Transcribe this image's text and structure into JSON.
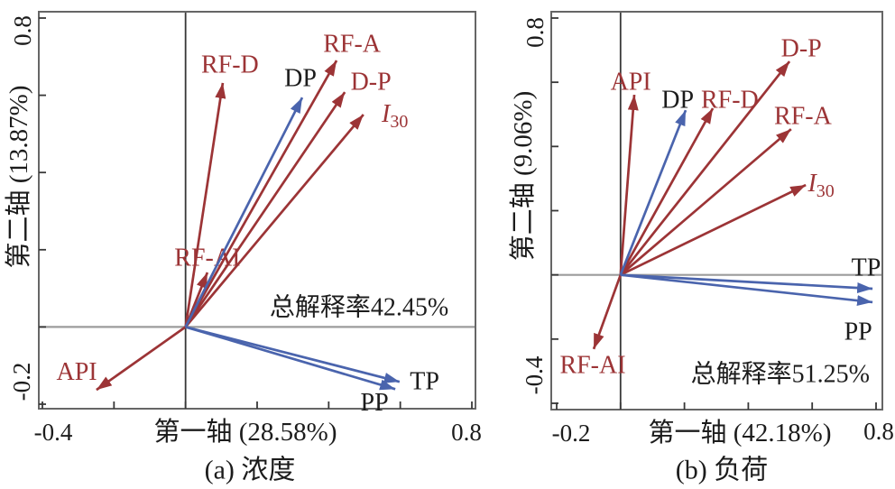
{
  "figure": {
    "background": "#ffffff"
  },
  "colors": {
    "env_arrow": "#9c3436",
    "resp_arrow": "#4a64ad",
    "env_label": "#9c3436",
    "resp_label": "#1c1c1c",
    "box": "#666666",
    "zero_line_h": "#9c9c9c",
    "zero_line_v": "#383838",
    "tick": "#383838",
    "text": "#1c1c1c"
  },
  "chart_data": [
    {
      "type": "biplot",
      "panel": "a",
      "caption": "(a) 浓度",
      "xlabel": "第一轴 (28.58%)",
      "ylabel": "第二轴 (13.87%)",
      "total_explained_label": "总解释率42.45%",
      "total_explained_pos": {
        "x": 0.485,
        "y": 0.05
      },
      "xlim": [
        -0.4,
        0.8
      ],
      "ylim": [
        -0.2,
        0.8
      ],
      "xticks": [
        -0.4,
        -0.2,
        0,
        0.2,
        0.4,
        0.6,
        0.8
      ],
      "yticks": [
        0.8,
        0.6,
        0.4,
        0.2,
        0,
        -0.2
      ],
      "xtick_labels": [
        "-0.4",
        "0.8"
      ],
      "ytick_labels": [
        "0.8",
        "-0.2"
      ],
      "grid": false,
      "vectors": [
        {
          "name": "RF-D",
          "group": "env",
          "x": 0.104,
          "y": 0.632,
          "label": {
            "text": "RF-D",
            "x": 0.124,
            "y": 0.679
          }
        },
        {
          "name": "RF-A",
          "group": "env",
          "x": 0.422,
          "y": 0.69,
          "label": {
            "text": "RF-A",
            "x": 0.465,
            "y": 0.732
          }
        },
        {
          "name": "D-P",
          "group": "env",
          "x": 0.445,
          "y": 0.608,
          "label": {
            "text": "D-P",
            "x": 0.518,
            "y": 0.634
          }
        },
        {
          "name": "I30",
          "group": "env",
          "x": 0.497,
          "y": 0.55,
          "label": {
            "text": "I30",
            "x": 0.585,
            "y": 0.552,
            "rich": {
              "base": "I",
              "sub": "30"
            }
          }
        },
        {
          "name": "RF-AI",
          "group": "env",
          "x": 0.061,
          "y": 0.141,
          "label": {
            "text": "RF-AI",
            "x": 0.061,
            "y": 0.179
          }
        },
        {
          "name": "API",
          "group": "env",
          "x": -0.249,
          "y": -0.163,
          "label": {
            "text": "API",
            "x": -0.304,
            "y": -0.117
          }
        },
        {
          "name": "DP",
          "group": "resp",
          "x": 0.326,
          "y": 0.594,
          "label": {
            "text": "DP",
            "x": 0.321,
            "y": 0.643
          }
        },
        {
          "name": "TP",
          "group": "resp",
          "x": 0.598,
          "y": -0.142,
          "label": {
            "text": "TP",
            "x": 0.668,
            "y": -0.142
          }
        },
        {
          "name": "PP",
          "group": "resp",
          "x": 0.586,
          "y": -0.161,
          "label": {
            "text": "PP",
            "x": 0.528,
            "y": -0.196
          }
        }
      ]
    },
    {
      "type": "biplot",
      "panel": "b",
      "caption": "(b) 负荷",
      "xlabel": "第一轴 (42.18%)",
      "ylabel": "第二轴 (9.06%)",
      "total_explained_label": "总解释率51.25%",
      "total_explained_pos": {
        "x": 0.5,
        "y": -0.31
      },
      "xlim": [
        -0.2,
        0.8
      ],
      "ylim": [
        -0.4,
        0.8
      ],
      "xticks": [
        -0.2,
        0,
        0.2,
        0.4,
        0.6,
        0.8
      ],
      "yticks": [
        0.8,
        0.6,
        0.4,
        0.2,
        0,
        -0.2,
        -0.4
      ],
      "xtick_labels": [
        "-0.2",
        "0.8"
      ],
      "ytick_labels": [
        "0.8",
        "-0.4"
      ],
      "grid": false,
      "vectors": [
        {
          "name": "API",
          "group": "env",
          "x": 0.043,
          "y": 0.561,
          "label": {
            "text": "API",
            "x": 0.032,
            "y": 0.601
          }
        },
        {
          "name": "RF-D",
          "group": "env",
          "x": 0.289,
          "y": 0.519,
          "label": {
            "text": "RF-D",
            "x": 0.342,
            "y": 0.544
          }
        },
        {
          "name": "D-P",
          "group": "env",
          "x": 0.529,
          "y": 0.665,
          "label": {
            "text": "D-P",
            "x": 0.566,
            "y": 0.705
          }
        },
        {
          "name": "RF-A",
          "group": "env",
          "x": 0.534,
          "y": 0.454,
          "label": {
            "text": "RF-A",
            "x": 0.571,
            "y": 0.494
          }
        },
        {
          "name": "I30",
          "group": "env",
          "x": 0.58,
          "y": 0.28,
          "label": {
            "text": "I30",
            "x": 0.628,
            "y": 0.286,
            "rich": {
              "base": "I",
              "sub": "30"
            }
          }
        },
        {
          "name": "RF-AI",
          "group": "env",
          "x": -0.084,
          "y": -0.231,
          "label": {
            "text": "RF-AI",
            "x": -0.087,
            "y": -0.282
          }
        },
        {
          "name": "DP",
          "group": "resp",
          "x": 0.204,
          "y": 0.513,
          "label": {
            "text": "DP",
            "x": 0.179,
            "y": 0.544
          }
        },
        {
          "name": "TP",
          "group": "resp",
          "x": 0.789,
          "y": -0.043,
          "label": {
            "text": "TP",
            "x": 0.769,
            "y": 0.022
          }
        },
        {
          "name": "PP",
          "group": "resp",
          "x": 0.789,
          "y": -0.085,
          "label": {
            "text": "PP",
            "x": 0.744,
            "y": -0.178
          }
        }
      ]
    }
  ]
}
